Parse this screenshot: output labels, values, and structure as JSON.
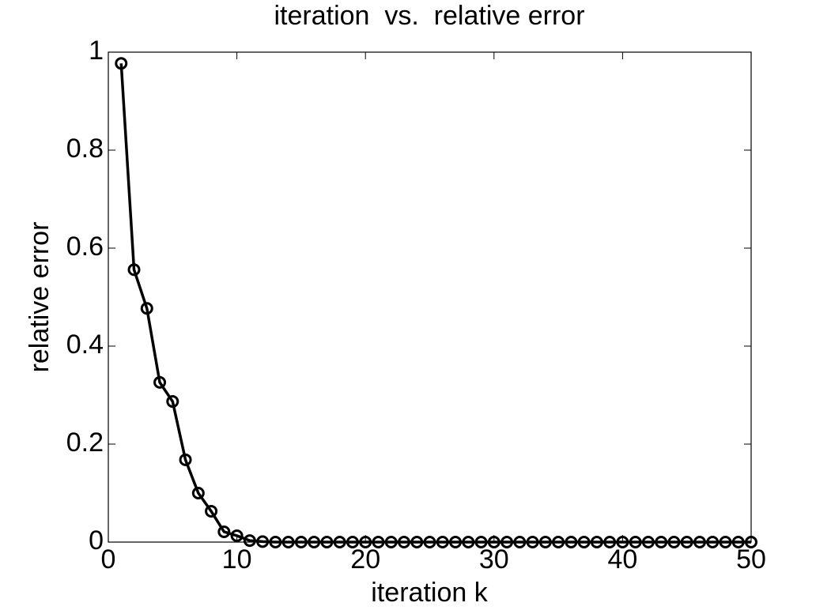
{
  "chart_data": {
    "type": "line",
    "title": "iteration  vs.  relative error",
    "x_label": "iteration k",
    "y_label": "relative error",
    "x": [
      1,
      2,
      3,
      4,
      5,
      6,
      7,
      8,
      9,
      10,
      11,
      12,
      13,
      14,
      15,
      16,
      17,
      18,
      19,
      20,
      21,
      22,
      23,
      24,
      25,
      26,
      27,
      28,
      29,
      30,
      31,
      32,
      33,
      34,
      35,
      36,
      37,
      38,
      39,
      40,
      41,
      42,
      43,
      44,
      45,
      46,
      47,
      48,
      49,
      50
    ],
    "values": [
      0.977,
      0.556,
      0.477,
      0.326,
      0.287,
      0.168,
      0.1,
      0.063,
      0.021,
      0.013,
      0.003,
      0.001,
      0,
      0,
      0,
      0,
      0,
      0,
      0,
      0,
      0,
      0,
      0,
      0,
      0,
      0,
      0,
      0,
      0,
      0,
      0,
      0,
      0,
      0,
      0,
      0,
      0,
      0,
      0,
      0,
      0,
      0,
      0,
      0,
      0,
      0,
      0,
      0,
      0,
      0
    ],
    "color": "#000000",
    "marker": "circle",
    "xlim": [
      0,
      50
    ],
    "xticks": [
      0,
      10,
      20,
      30,
      40,
      50
    ],
    "ylim": [
      0,
      1
    ],
    "yticks": [
      0,
      0.2,
      0.4,
      0.6,
      0.8,
      1
    ],
    "grid": false
  }
}
